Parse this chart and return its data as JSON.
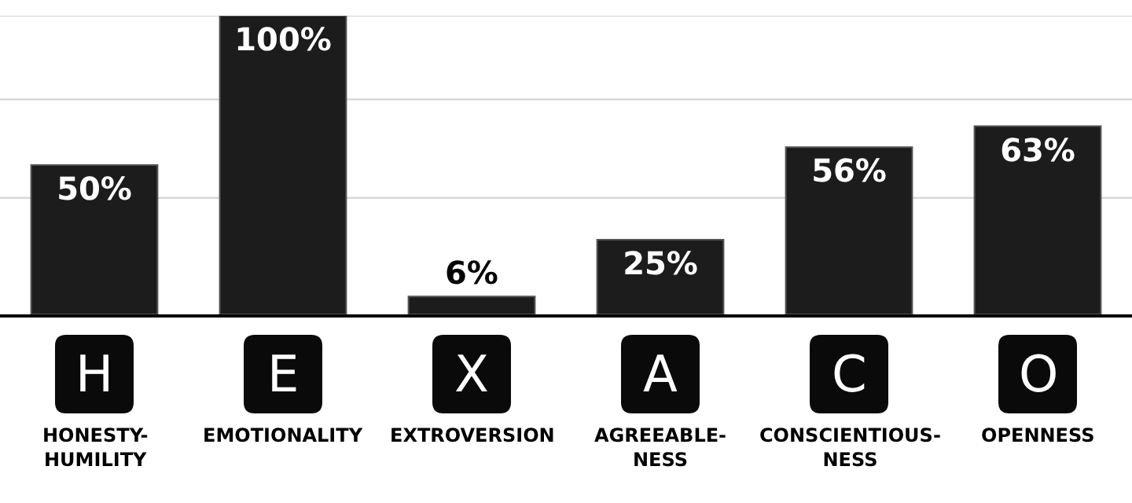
{
  "chart_data": {
    "type": "bar",
    "categories": [
      "H\nHONESTY-\nHUMILITY",
      "E\nEMOTIONALITY",
      "X\nEXTROVERSION",
      "A\nAGREEABLE-\nNESS",
      "C\nCONSCIENTIOUS-\nNESS",
      "O\nOPENNESS"
    ],
    "values": [
      50,
      100,
      6,
      25,
      56,
      63
    ],
    "value_labels": [
      "50%",
      "100%",
      "6%",
      "25%",
      "56%",
      "63%"
    ],
    "color": "#1c1c1c",
    "ylim": [
      0,
      100
    ],
    "ref_lines": [
      {
        "axis": "y",
        "value": 39,
        "color": "#d0d0d0"
      },
      {
        "axis": "y",
        "value": 72,
        "color": "#d0d0d0"
      },
      {
        "axis": "y",
        "value": 100,
        "color": "#d0d0d0"
      }
    ]
  }
}
